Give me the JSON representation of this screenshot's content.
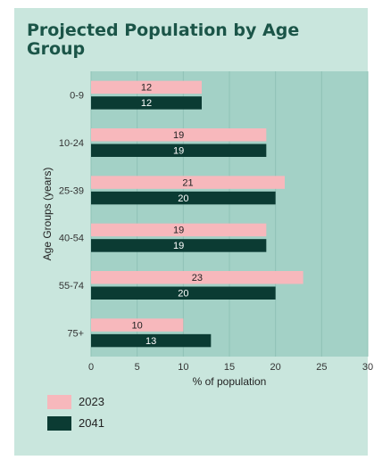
{
  "chart_data": {
    "type": "bar",
    "orientation": "horizontal",
    "title": "Projected Population by Age Group",
    "xlabel": "% of population",
    "ylabel": "Age Groups (years)",
    "categories": [
      "0-9",
      "10-24",
      "25-39",
      "40-54",
      "55-74",
      "75+"
    ],
    "series": [
      {
        "name": "2023",
        "values": [
          12,
          19,
          21,
          19,
          23,
          10
        ],
        "color": "#f7b8bc"
      },
      {
        "name": "2041",
        "values": [
          12,
          19,
          20,
          19,
          20,
          13
        ],
        "color": "#0b3b33"
      }
    ],
    "xlim": [
      0,
      30
    ],
    "xticks": [
      0,
      5,
      10,
      15,
      20,
      25,
      30
    ],
    "grid": true,
    "legend_position": "bottom-left"
  },
  "colors": {
    "card_background": "#c9e6dd",
    "plot_background": "#a3d1c6",
    "title": "#1b5548"
  }
}
